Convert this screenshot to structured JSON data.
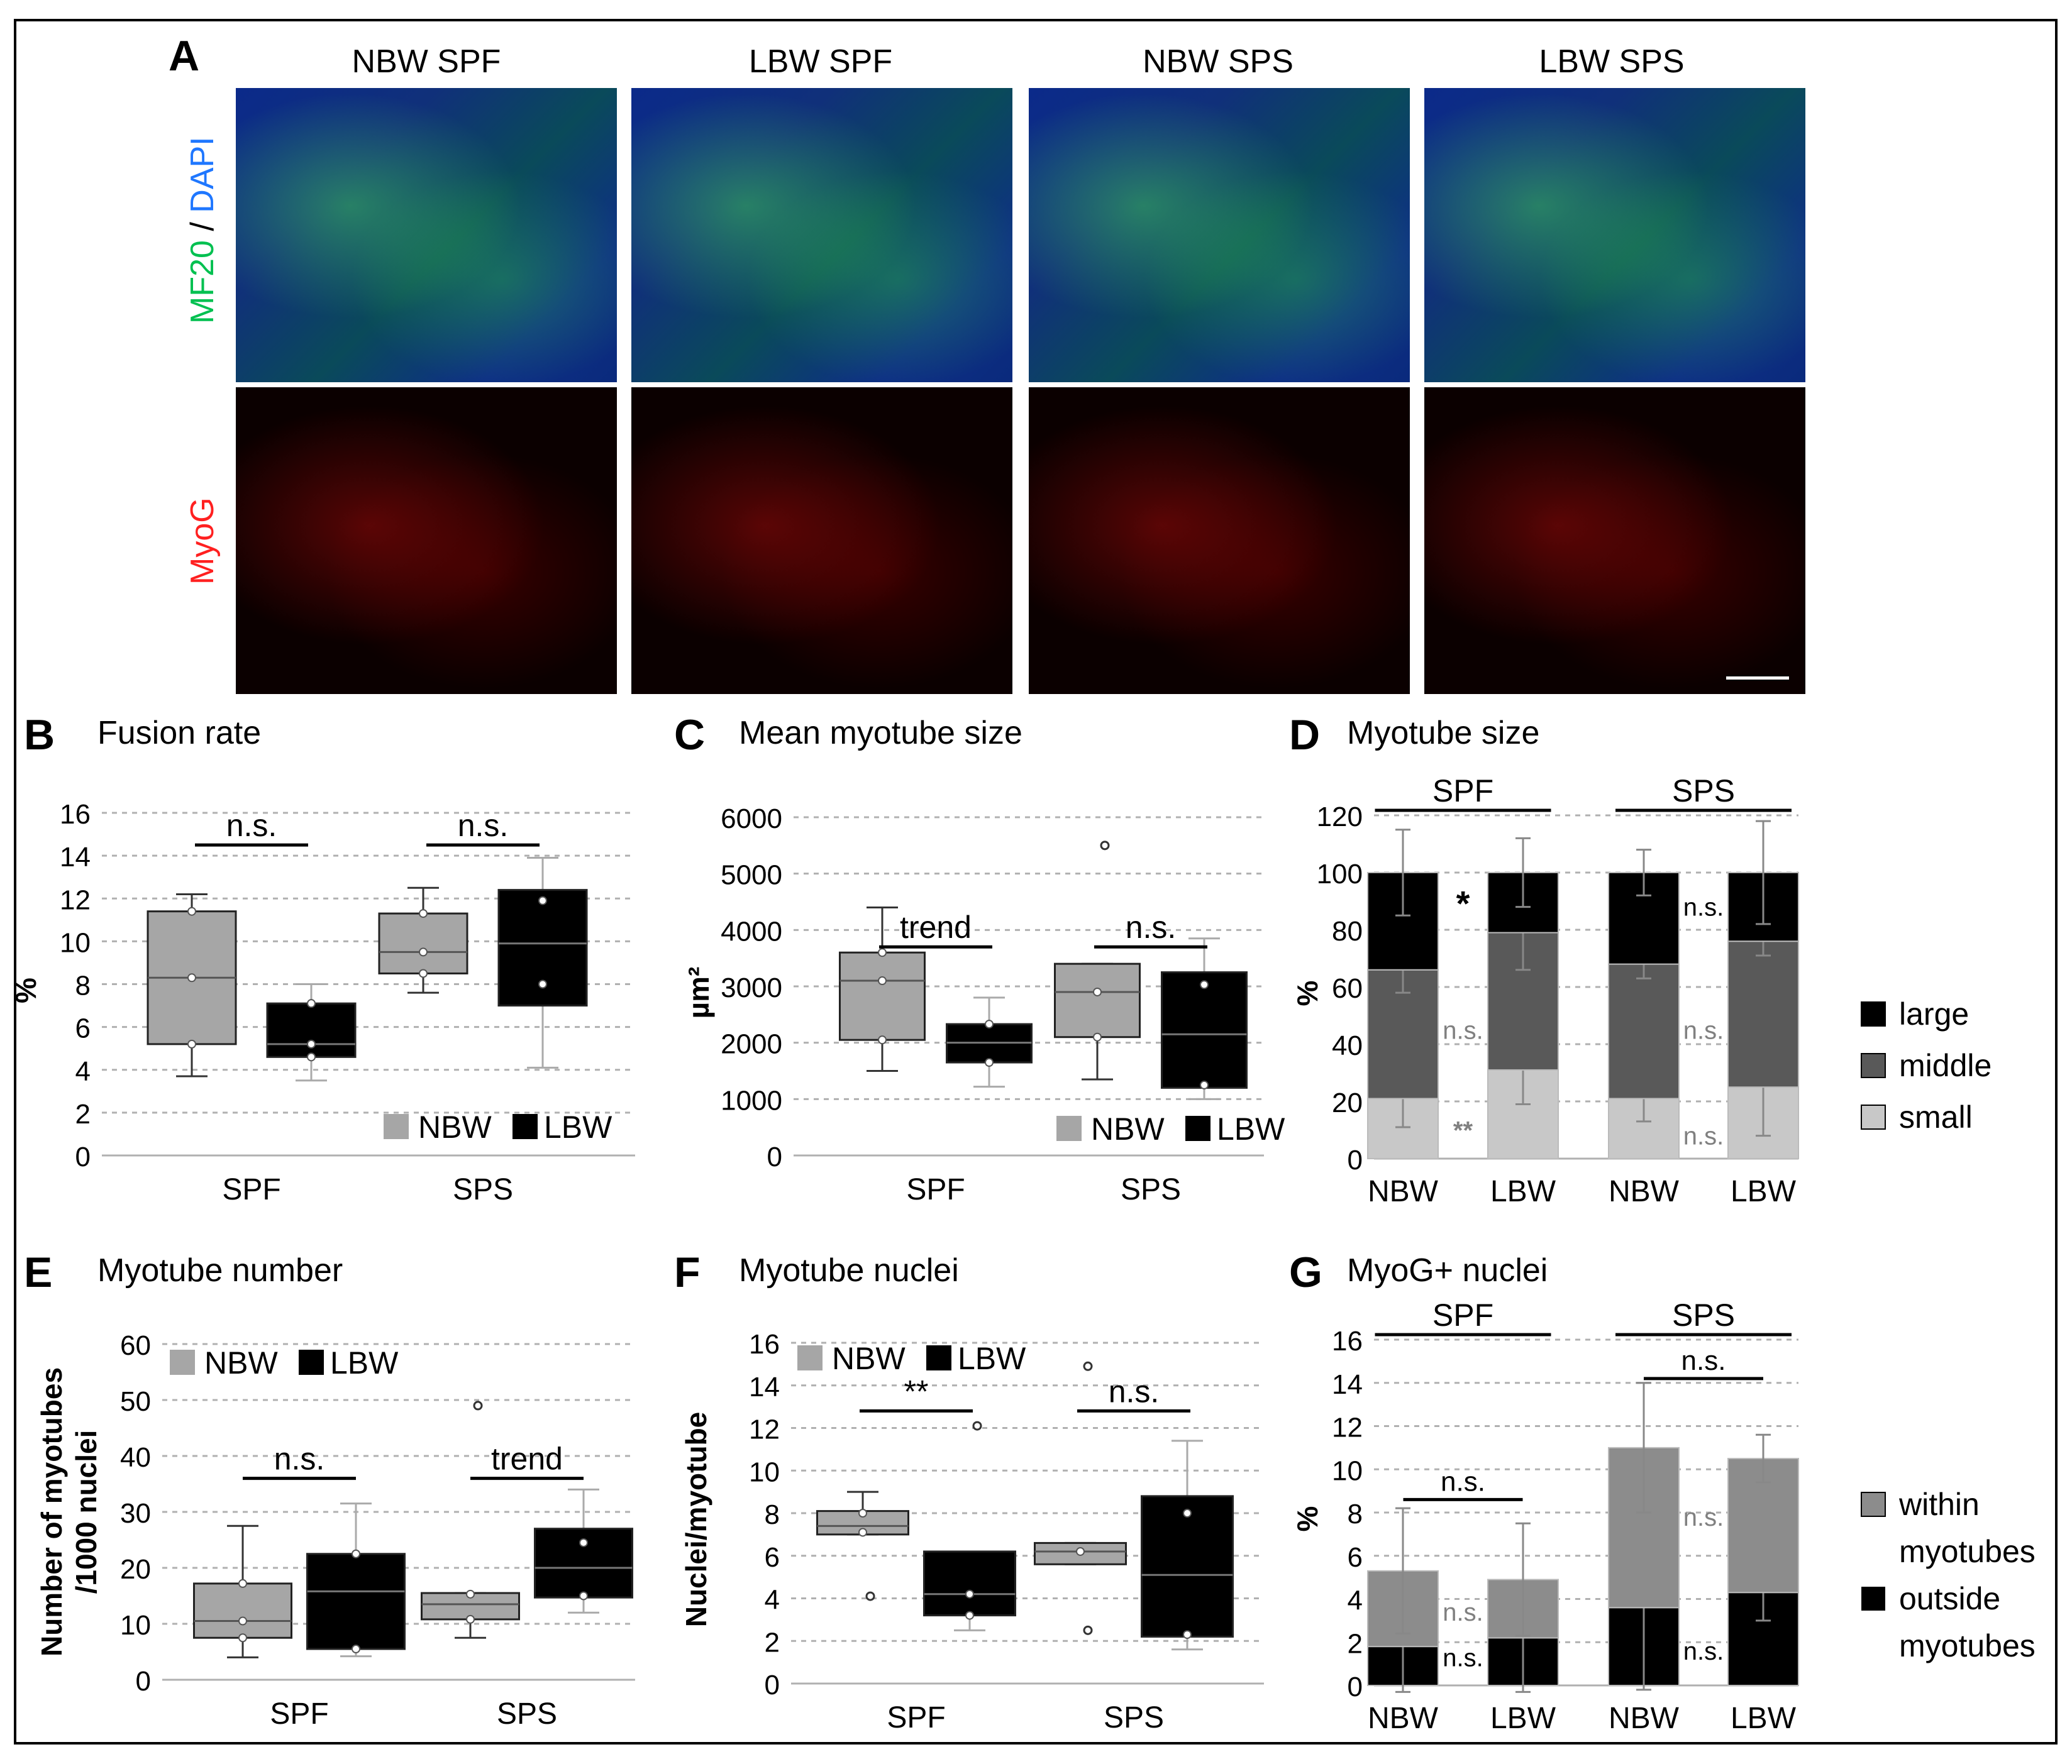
{
  "panels": {
    "A": {
      "label": "A",
      "columns": [
        "NBW SPF",
        "LBW SPF",
        "NBW SPS",
        "LBW SPS"
      ],
      "row1_label_parts": [
        "MF20",
        " / ",
        "DAPI"
      ],
      "row2_label": "MyoG"
    },
    "B": {
      "label": "B",
      "title": "Fusion rate"
    },
    "C": {
      "label": "C",
      "title": "Mean myotube size"
    },
    "D": {
      "label": "D",
      "title": "Myotube size"
    },
    "E": {
      "label": "E",
      "title": "Myotube number"
    },
    "F": {
      "label": "F",
      "title": "Myotube nuclei"
    },
    "G": {
      "label": "G",
      "title": "MyoG+ nuclei"
    }
  },
  "colors": {
    "nbw": "#a6a6a6",
    "lbw": "#000000",
    "middle": "#595959",
    "small": "#c8c8c8",
    "mf20": "#00c050",
    "dapi": "#1f77ff",
    "myog": "#ff2020",
    "ns_gray": "#808080"
  },
  "chart_data": [
    {
      "id": "B",
      "type": "box",
      "ylabel": "%",
      "ylim": [
        0,
        16
      ],
      "yticks": [
        0,
        2,
        4,
        6,
        8,
        10,
        12,
        14,
        16
      ],
      "categories": [
        "SPF",
        "SPS"
      ],
      "legend": [
        "NBW",
        "LBW"
      ],
      "series": [
        {
          "name": "NBW",
          "boxes": [
            {
              "min": 3.7,
              "q1": 5.2,
              "median": 8.3,
              "q3": 11.4,
              "max": 12.2,
              "points": [
                5.2,
                8.3,
                11.4
              ]
            },
            {
              "min": 7.6,
              "q1": 8.5,
              "median": 9.5,
              "q3": 11.3,
              "max": 12.5,
              "points": [
                8.5,
                9.5,
                11.3
              ]
            }
          ]
        },
        {
          "name": "LBW",
          "boxes": [
            {
              "min": 3.5,
              "q1": 4.6,
              "median": 5.2,
              "q3": 7.1,
              "max": 8.0,
              "points": [
                4.6,
                5.2,
                7.1
              ]
            },
            {
              "min": 4.1,
              "q1": 7.0,
              "median": 9.9,
              "q3": 12.4,
              "max": 13.9,
              "points": [
                8.0,
                11.9
              ]
            }
          ]
        }
      ],
      "annotations": [
        {
          "group": 0,
          "text": "n.s.",
          "y": 14.5
        },
        {
          "group": 1,
          "text": "n.s.",
          "y": 14.5
        }
      ]
    },
    {
      "id": "C",
      "type": "box",
      "ylabel": "µm²",
      "ylim": [
        0,
        6000
      ],
      "yticks": [
        0,
        1000,
        2000,
        3000,
        4000,
        5000,
        6000
      ],
      "categories": [
        "SPF",
        "SPS"
      ],
      "legend": [
        "NBW",
        "LBW"
      ],
      "series": [
        {
          "name": "NBW",
          "boxes": [
            {
              "min": 1500,
              "q1": 2050,
              "median": 3100,
              "q3": 3600,
              "max": 4400,
              "points": [
                2050,
                3100,
                3600
              ]
            },
            {
              "min": 1350,
              "q1": 2100,
              "median": 2900,
              "q3": 3400,
              "max": 3400,
              "points": [
                2100,
                2900
              ],
              "outliers": [
                5500
              ]
            }
          ]
        },
        {
          "name": "LBW",
          "boxes": [
            {
              "min": 1220,
              "q1": 1650,
              "median": 2000,
              "q3": 2330,
              "max": 2800,
              "points": [
                1650,
                2330
              ]
            },
            {
              "min": 1000,
              "q1": 1200,
              "median": 2150,
              "q3": 3250,
              "max": 3850,
              "points": [
                1250,
                3030
              ]
            }
          ]
        }
      ],
      "annotations": [
        {
          "group": 0,
          "text": "trend",
          "y": 3700
        },
        {
          "group": 1,
          "text": "n.s.",
          "y": 3700
        }
      ]
    },
    {
      "id": "D",
      "type": "stacked_bar",
      "ylabel": "%",
      "ylim": [
        0,
        120
      ],
      "yticks": [
        0,
        20,
        40,
        60,
        80,
        100,
        120
      ],
      "groups": [
        "SPF",
        "SPS"
      ],
      "categories": [
        "NBW",
        "LBW",
        "NBW",
        "LBW"
      ],
      "series": [
        {
          "name": "small",
          "values": [
            21,
            31,
            21,
            25
          ],
          "err": [
            10,
            12,
            8,
            17
          ]
        },
        {
          "name": "middle",
          "values": [
            45,
            48,
            47,
            51
          ],
          "err": [
            8,
            13,
            5,
            5
          ]
        },
        {
          "name": "large",
          "values": [
            34,
            21,
            32,
            24
          ],
          "err": [
            15,
            12,
            8,
            18
          ]
        }
      ],
      "legend": [
        "large",
        "middle",
        "small"
      ],
      "annotations": [
        {
          "between": [
            0,
            1
          ],
          "y": 88,
          "text": "*",
          "level": "large"
        },
        {
          "between": [
            0,
            1
          ],
          "y": 45,
          "text": "n.s.",
          "level": "middle"
        },
        {
          "between": [
            0,
            1
          ],
          "y": 10,
          "text": "**",
          "level": "small"
        },
        {
          "between": [
            2,
            3
          ],
          "y": 88,
          "text": "n.s.",
          "level": "large"
        },
        {
          "between": [
            2,
            3
          ],
          "y": 45,
          "text": "n.s.",
          "level": "middle"
        },
        {
          "between": [
            2,
            3
          ],
          "y": 8,
          "text": "n.s.",
          "level": "small"
        }
      ]
    },
    {
      "id": "E",
      "type": "box",
      "ylabel": [
        "Number of myotubes",
        "/1000 nuclei"
      ],
      "ylim": [
        0,
        60
      ],
      "yticks": [
        0,
        10,
        20,
        30,
        40,
        50,
        60
      ],
      "categories": [
        "SPF",
        "SPS"
      ],
      "legend": [
        "NBW",
        "LBW"
      ],
      "series": [
        {
          "name": "NBW",
          "boxes": [
            {
              "min": 4,
              "q1": 7.5,
              "median": 10.5,
              "q3": 17.2,
              "max": 27.5,
              "points": [
                7.5,
                10.5,
                17.2
              ]
            },
            {
              "min": 7.5,
              "q1": 10.8,
              "median": 13.5,
              "q3": 15.5,
              "max": 15.5,
              "points": [
                10.8,
                15.3
              ],
              "outliers": [
                49
              ]
            }
          ]
        },
        {
          "name": "LBW",
          "boxes": [
            {
              "min": 4.2,
              "q1": 5.5,
              "median": 15.8,
              "q3": 22.5,
              "max": 31.5,
              "points": [
                5.5,
                22.5
              ]
            },
            {
              "min": 12,
              "q1": 14.7,
              "median": 20,
              "q3": 27,
              "max": 34,
              "points": [
                15,
                24.5
              ]
            }
          ]
        }
      ],
      "annotations": [
        {
          "group": 0,
          "text": "n.s.",
          "y": 36
        },
        {
          "group": 1,
          "text": "trend",
          "y": 36
        }
      ]
    },
    {
      "id": "F",
      "type": "box",
      "ylabel": "Nuclei/myotube",
      "ylim": [
        0,
        16
      ],
      "yticks": [
        0,
        2,
        4,
        6,
        8,
        10,
        12,
        14,
        16
      ],
      "categories": [
        "SPF",
        "SPS"
      ],
      "legend": [
        "NBW",
        "LBW"
      ],
      "series": [
        {
          "name": "NBW",
          "boxes": [
            {
              "min": 7.0,
              "q1": 7.0,
              "median": 7.4,
              "q3": 8.1,
              "max": 9.0,
              "points": [
                7.1,
                8.0
              ],
              "outliers": [
                4.1
              ]
            },
            {
              "min": 5.6,
              "q1": 5.6,
              "median": 6.2,
              "q3": 6.6,
              "max": 6.6,
              "points": [
                6.2
              ],
              "outliers": [
                14.9,
                2.5
              ]
            }
          ]
        },
        {
          "name": "LBW",
          "boxes": [
            {
              "min": 2.5,
              "q1": 3.2,
              "median": 4.2,
              "q3": 6.2,
              "max": 6.2,
              "points": [
                3.2,
                4.2
              ],
              "outliers": [
                12.1
              ]
            },
            {
              "min": 1.6,
              "q1": 2.2,
              "median": 5.1,
              "q3": 8.8,
              "max": 11.4,
              "points": [
                2.3,
                8.0
              ]
            }
          ]
        }
      ],
      "annotations": [
        {
          "group": 0,
          "text": "**",
          "y": 12.8
        },
        {
          "group": 1,
          "text": "n.s.",
          "y": 12.8
        }
      ]
    },
    {
      "id": "G",
      "type": "stacked_bar",
      "ylabel": "%",
      "ylim": [
        0,
        16
      ],
      "yticks": [
        0,
        2,
        4,
        6,
        8,
        10,
        12,
        14,
        16
      ],
      "groups": [
        "SPF",
        "SPS"
      ],
      "categories": [
        "NBW",
        "LBW",
        "NBW",
        "LBW"
      ],
      "series": [
        {
          "name": "outside myotubes",
          "values": [
            1.8,
            2.2,
            3.6,
            4.3
          ],
          "err": [
            2.1,
            2.5,
            3.8,
            1.3
          ]
        },
        {
          "name": "within myotubes",
          "values": [
            3.5,
            2.7,
            7.4,
            6.2
          ],
          "err": [
            2.9,
            2.6,
            3.0,
            1.1
          ]
        }
      ],
      "legend": [
        "within",
        "myotubes",
        "outside",
        "myotubes"
      ],
      "annotations": [
        {
          "between": [
            0,
            1
          ],
          "y": 8.6,
          "text": "n.s.",
          "bar": true
        },
        {
          "between": [
            0,
            1
          ],
          "y": 3.4,
          "text": "n.s.",
          "level": "within"
        },
        {
          "between": [
            0,
            1
          ],
          "y": 1.3,
          "text": "n.s.",
          "level": "outside"
        },
        {
          "between": [
            2,
            3
          ],
          "y": 14.2,
          "text": "n.s.",
          "bar": true
        },
        {
          "between": [
            2,
            3
          ],
          "y": 7.8,
          "text": "n.s.",
          "level": "within"
        },
        {
          "between": [
            2,
            3
          ],
          "y": 1.6,
          "text": "n.s.",
          "level": "outside"
        }
      ]
    }
  ]
}
